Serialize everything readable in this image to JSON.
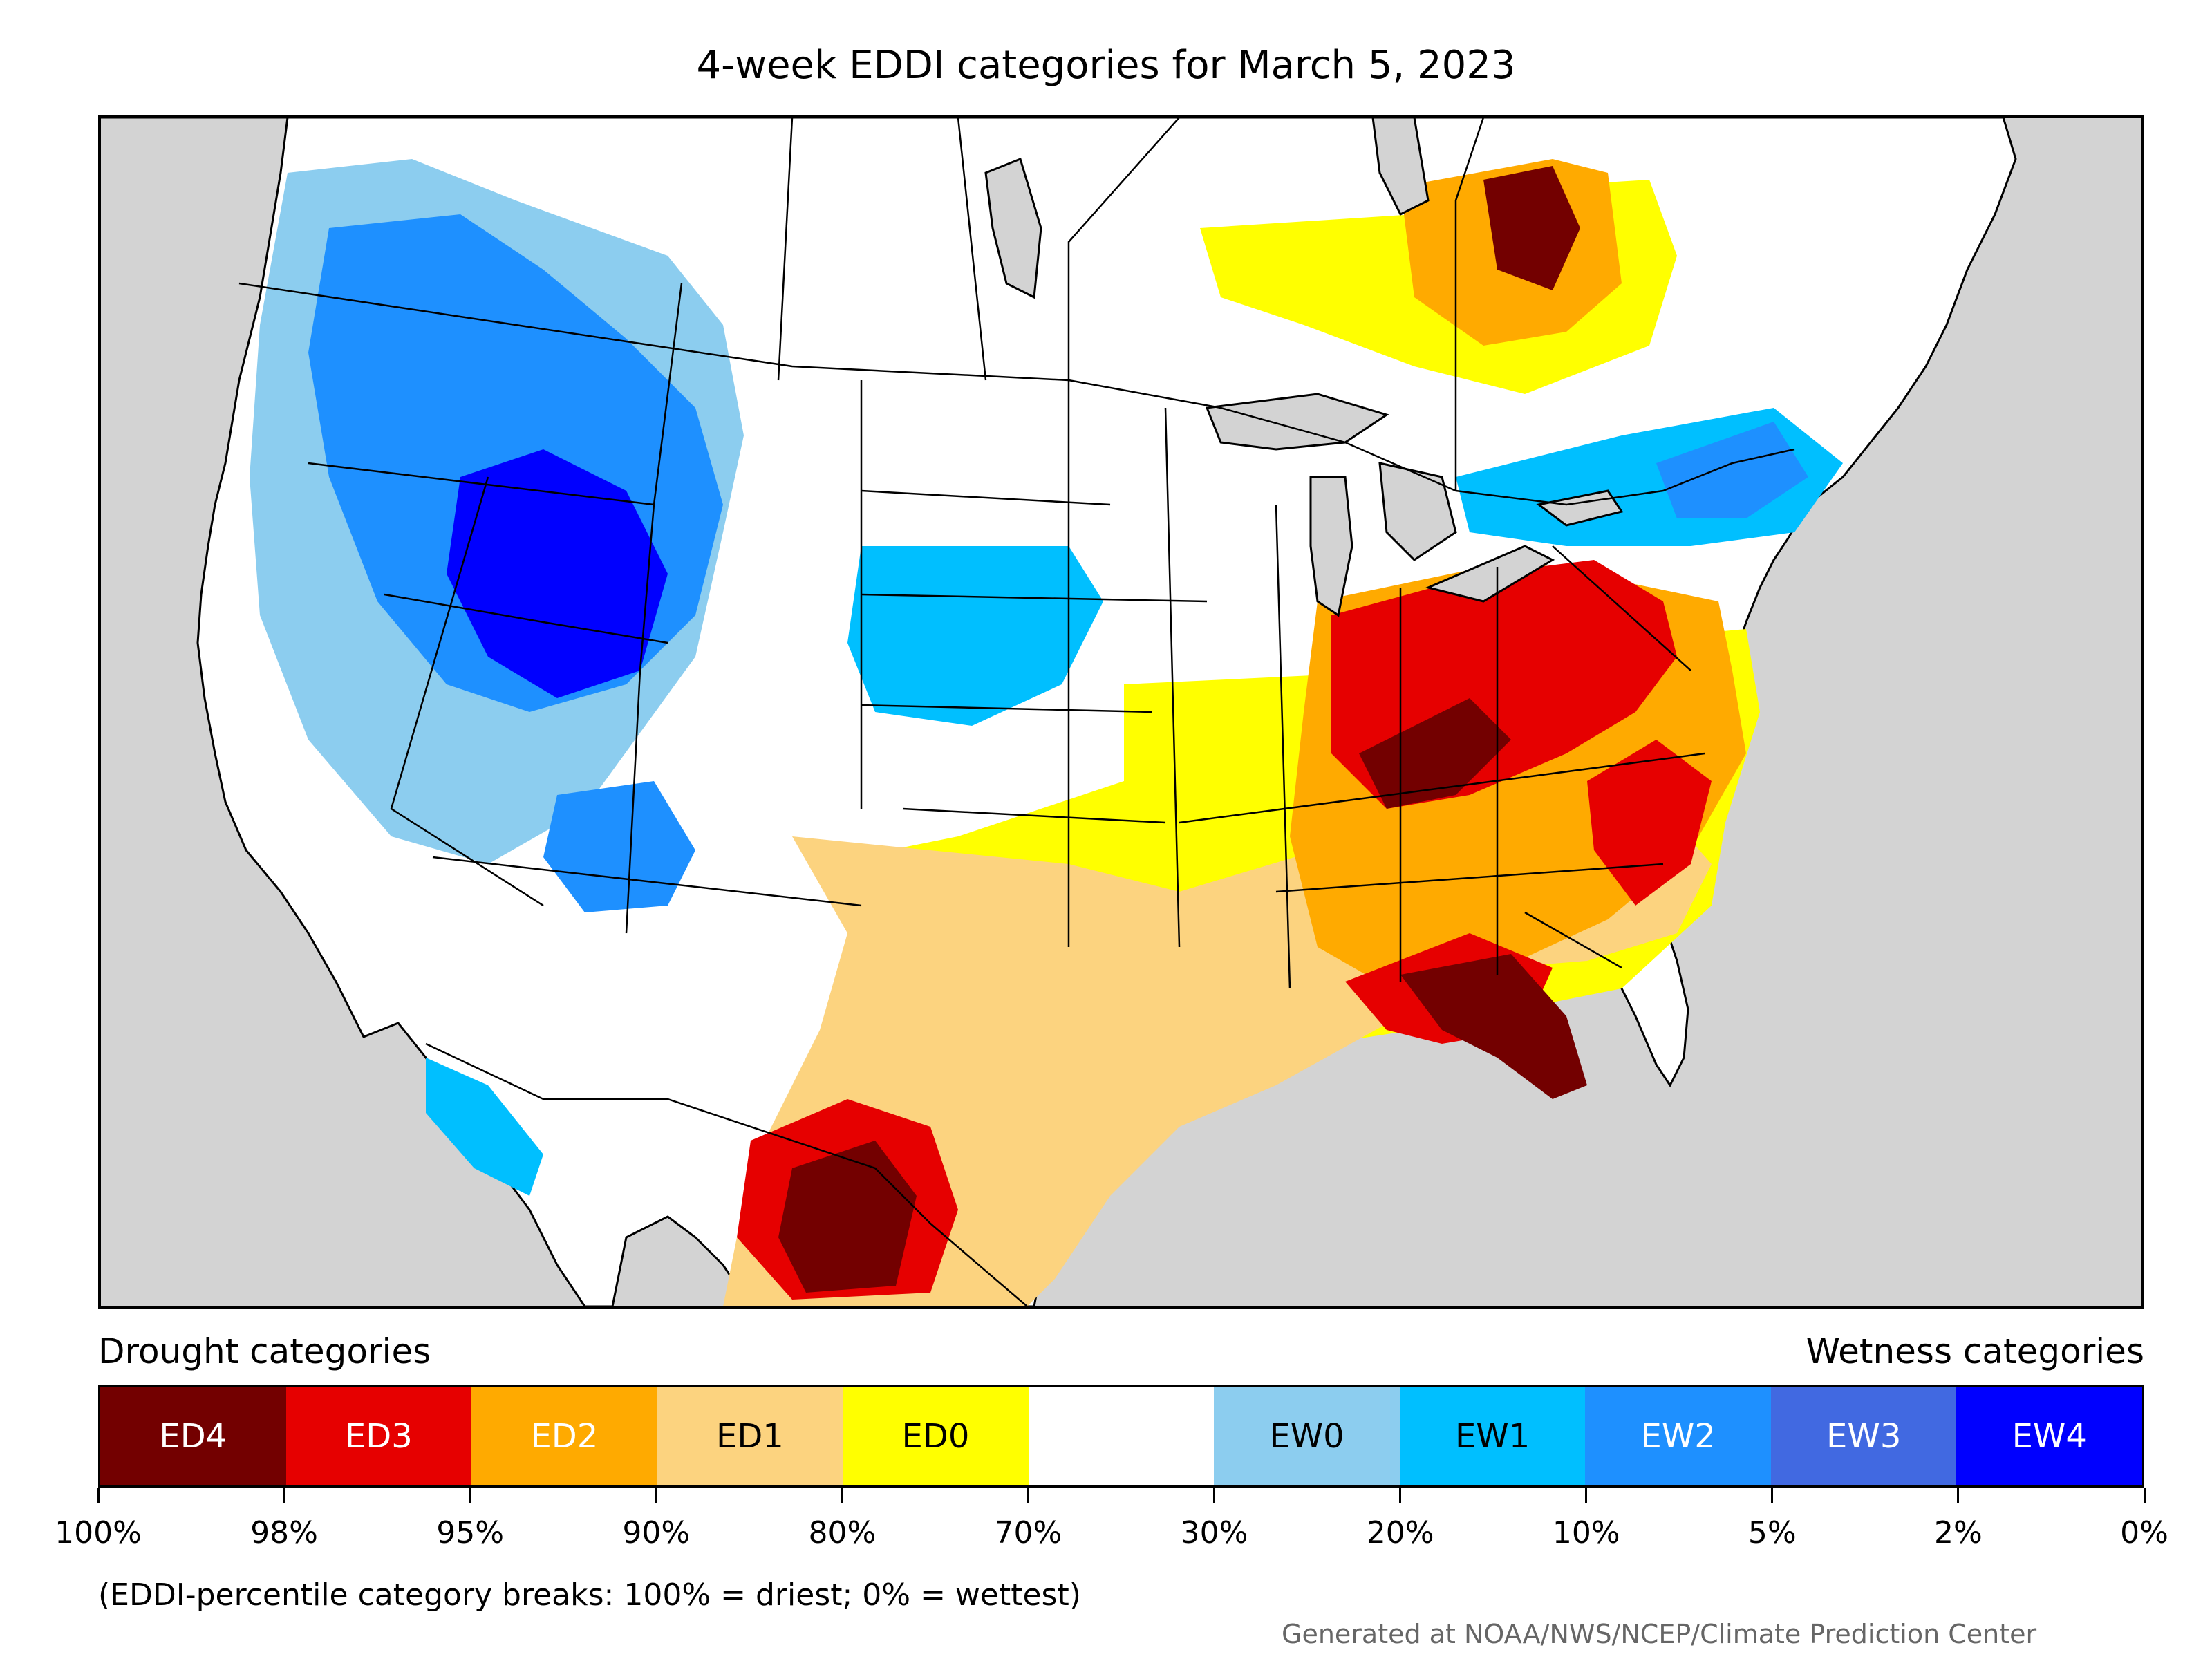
{
  "title": "4-week EDDI categories for March 5, 2023",
  "legend": {
    "drought_label": "Drought categories",
    "wetness_label": "Wetness categories",
    "categories": [
      {
        "label": "ED4",
        "color": "#730000",
        "text_color": "#ffffff"
      },
      {
        "label": "ED3",
        "color": "#e60000",
        "text_color": "#ffffff"
      },
      {
        "label": "ED2",
        "color": "#ffaa00",
        "text_color": "#ffffff"
      },
      {
        "label": "ED1",
        "color": "#fcd37f",
        "text_color": "#000000"
      },
      {
        "label": "ED0",
        "color": "#ffff00",
        "text_color": "#000000"
      },
      {
        "label": "",
        "color": "#ffffff",
        "text_color": "#000000"
      },
      {
        "label": "EW0",
        "color": "#8ccdef",
        "text_color": "#000000"
      },
      {
        "label": "EW1",
        "color": "#00bfff",
        "text_color": "#000000"
      },
      {
        "label": "EW2",
        "color": "#1e90ff",
        "text_color": "#ffffff"
      },
      {
        "label": "EW3",
        "color": "#4169e1",
        "text_color": "#ffffff"
      },
      {
        "label": "EW4",
        "color": "#0000ff",
        "text_color": "#ffffff"
      }
    ],
    "breaks": [
      "100%",
      "98%",
      "95%",
      "90%",
      "80%",
      "70%",
      "30%",
      "20%",
      "10%",
      "5%",
      "2%",
      "0%"
    ]
  },
  "note": "(EDDI-percentile category breaks: 100% = driest; 0% = wettest)",
  "credit": "Generated at NOAA/NWS/NCEP/Climate Prediction Center",
  "colors": {
    "ocean": "#d3d3d3",
    "ED4": "#730000",
    "ED3": "#e60000",
    "ED2": "#ffaa00",
    "ED1": "#fcd37f",
    "ED0": "#ffff00",
    "EW0": "#8ccdef",
    "EW1": "#00bfff",
    "EW2": "#1e90ff",
    "EW3": "#4169e1",
    "EW4": "#0000ff"
  }
}
